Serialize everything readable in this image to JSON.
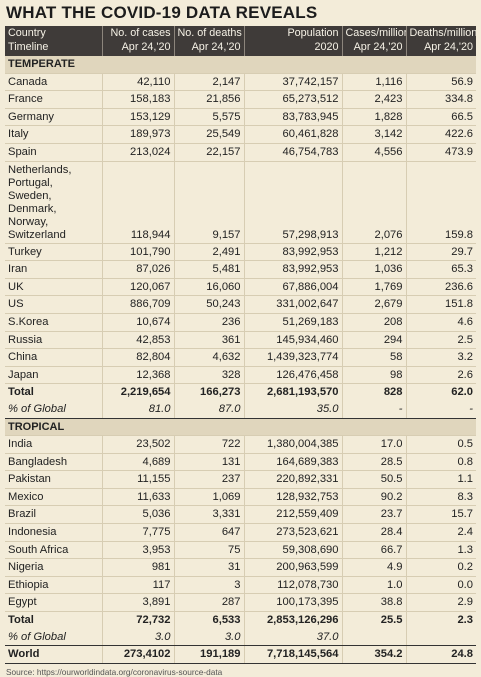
{
  "title": "WHAT THE COVID-19 DATA REVEALS",
  "headers": [
    [
      "Country",
      "No. of cases",
      "No. of deaths",
      "Population",
      "Cases/million",
      "Deaths/million"
    ],
    [
      "Timeline",
      "Apr 24,'20",
      "Apr 24,'20",
      "2020",
      "Apr 24,'20",
      "Apr 24,'20"
    ]
  ],
  "sections": [
    {
      "name": "TEMPERATE",
      "rows": [
        [
          "Canada",
          "42,110",
          "2,147",
          "37,742,157",
          "1,116",
          "56.9"
        ],
        [
          "France",
          "158,183",
          "21,856",
          "65,273,512",
          "2,423",
          "334.8"
        ],
        [
          "Germany",
          "153,129",
          "5,575",
          "83,783,945",
          "1,828",
          "66.5"
        ],
        [
          "Italy",
          "189,973",
          "25,549",
          "60,461,828",
          "3,142",
          "422.6"
        ],
        [
          "Spain",
          "213,024",
          "22,157",
          "46,754,783",
          "4,556",
          "473.9"
        ],
        [
          "Netherlands, Portugal, Sweden, Denmark, Norway, Switzerland",
          "118,944",
          "9,157",
          "57,298,913",
          "2,076",
          "159.8"
        ],
        [
          "Turkey",
          "101,790",
          "2,491",
          "83,992,953",
          "1,212",
          "29.7"
        ],
        [
          "Iran",
          "87,026",
          "5,481",
          "83,992,953",
          "1,036",
          "65.3"
        ],
        [
          "UK",
          "120,067",
          "16,060",
          "67,886,004",
          "1,769",
          "236.6"
        ],
        [
          "US",
          "886,709",
          "50,243",
          "331,002,647",
          "2,679",
          "151.8"
        ],
        [
          "S.Korea",
          "10,674",
          "236",
          "51,269,183",
          "208",
          "4.6"
        ],
        [
          "Russia",
          "42,853",
          "361",
          "145,934,460",
          "294",
          "2.5"
        ],
        [
          "China",
          "82,804",
          "4,632",
          "1,439,323,774",
          "58",
          "3.2"
        ],
        [
          "Japan",
          "12,368",
          "328",
          "126,476,458",
          "98",
          "2.6"
        ]
      ],
      "total": [
        "Total",
        "2,219,654",
        "166,273",
        "2,681,193,570",
        "828",
        "62.0"
      ],
      "pct": [
        "% of Global",
        "81.0",
        "87.0",
        "35.0",
        "-",
        "-"
      ]
    },
    {
      "name": "TROPICAL",
      "rows": [
        [
          "India",
          "23,502",
          "722",
          "1,380,004,385",
          "17.0",
          "0.5"
        ],
        [
          "Bangladesh",
          "4,689",
          "131",
          "164,689,383",
          "28.5",
          "0.8"
        ],
        [
          "Pakistan",
          "11,155",
          "237",
          "220,892,331",
          "50.5",
          "1.1"
        ],
        [
          "Mexico",
          "11,633",
          "1,069",
          "128,932,753",
          "90.2",
          "8.3"
        ],
        [
          "Brazil",
          "5,036",
          "3,331",
          "212,559,409",
          "23.7",
          "15.7"
        ],
        [
          "Indonesia",
          "7,775",
          "647",
          "273,523,621",
          "28.4",
          "2.4"
        ],
        [
          "South Africa",
          "3,953",
          "75",
          "59,308,690",
          "66.7",
          "1.3"
        ],
        [
          "Nigeria",
          "981",
          "31",
          "200,963,599",
          "4.9",
          "0.2"
        ],
        [
          "Ethiopia",
          "117",
          "3",
          "112,078,730",
          "1.0",
          "0.0"
        ],
        [
          "Egypt",
          "3,891",
          "287",
          "100,173,395",
          "38.8",
          "2.9"
        ]
      ],
      "total": [
        "Total",
        "72,732",
        "6,533",
        "2,853,126,296",
        "25.5",
        "2.3"
      ],
      "pct": [
        "% of Global",
        "3.0",
        "3.0",
        "37.0",
        "",
        ""
      ]
    }
  ],
  "world": [
    "World",
    "273,4102",
    "191,189",
    "7,718,145,564",
    "354.2",
    "24.8"
  ],
  "source": "Source: https://ourworldindata.org/coronavirus-source-data"
}
